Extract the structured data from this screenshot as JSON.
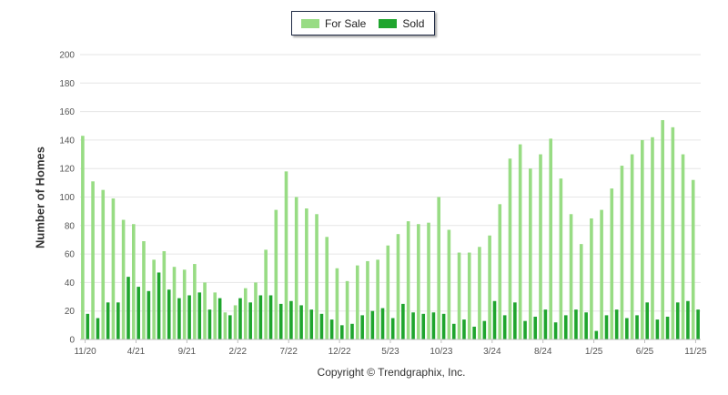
{
  "colors": {
    "for_sale": "#98dc84",
    "sold": "#1fa52e",
    "grid": "#e6e6e6",
    "axis_text": "#555555"
  },
  "legend": {
    "items": [
      {
        "label": "For Sale",
        "color": "#98dc84"
      },
      {
        "label": "Sold",
        "color": "#1fa52e"
      }
    ]
  },
  "copyright": "Copyright © Trendgraphix, Inc.",
  "chart_data": {
    "type": "bar",
    "ylabel": "Number of Homes",
    "ylim": [
      0,
      200
    ],
    "yticks": [
      0,
      20,
      40,
      60,
      80,
      100,
      120,
      140,
      160,
      180,
      200
    ],
    "grid": true,
    "legend_position": "top-center",
    "x_tick_labels": [
      {
        "index": 0,
        "label": "11/20"
      },
      {
        "index": 5,
        "label": "4/21"
      },
      {
        "index": 10,
        "label": "9/21"
      },
      {
        "index": 15,
        "label": "2/22"
      },
      {
        "index": 20,
        "label": "7/22"
      },
      {
        "index": 25,
        "label": "12/22"
      },
      {
        "index": 30,
        "label": "5/23"
      },
      {
        "index": 35,
        "label": "10/23"
      },
      {
        "index": 40,
        "label": "3/24"
      },
      {
        "index": 45,
        "label": "8/24"
      },
      {
        "index": 50,
        "label": "1/25"
      },
      {
        "index": 55,
        "label": "6/25"
      },
      {
        "index": 60,
        "label": "11/25"
      }
    ],
    "categories": [
      "11/20",
      "12/20",
      "1/21",
      "2/21",
      "3/21",
      "4/21",
      "5/21",
      "6/21",
      "7/21",
      "8/21",
      "9/21",
      "10/21",
      "11/21",
      "12/21",
      "1/22",
      "2/22",
      "3/22",
      "4/22",
      "5/22",
      "6/22",
      "7/22",
      "8/22",
      "9/22",
      "10/22",
      "11/22",
      "12/22",
      "1/23",
      "2/23",
      "3/23",
      "4/23",
      "5/23",
      "6/23",
      "7/23",
      "8/23",
      "9/23",
      "10/23",
      "11/23",
      "12/23",
      "1/24",
      "2/24",
      "3/24",
      "4/24",
      "5/24",
      "6/24",
      "7/24",
      "8/24",
      "9/24",
      "10/24",
      "11/24",
      "12/24",
      "1/25",
      "2/25",
      "3/25",
      "4/25",
      "5/25",
      "6/25",
      "7/25",
      "8/25",
      "9/25",
      "10/25",
      "11/25"
    ],
    "series": [
      {
        "name": "For Sale",
        "values": [
          143,
          111,
          105,
          99,
          84,
          81,
          69,
          56,
          62,
          51,
          49,
          53,
          40,
          33,
          19,
          24,
          36,
          40,
          63,
          91,
          118,
          100,
          92,
          88,
          72,
          50,
          41,
          52,
          55,
          56,
          66,
          74,
          83,
          81,
          82,
          100,
          77,
          61,
          61,
          65,
          73,
          95,
          127,
          137,
          120,
          130,
          141,
          113,
          88,
          67,
          85,
          91,
          106,
          122,
          130,
          140,
          142,
          154,
          149,
          130,
          112
        ]
      },
      {
        "name": "Sold",
        "values": [
          18,
          15,
          26,
          26,
          44,
          37,
          34,
          47,
          35,
          29,
          31,
          33,
          21,
          29,
          17,
          29,
          26,
          31,
          31,
          25,
          27,
          24,
          21,
          18,
          14,
          10,
          11,
          17,
          20,
          22,
          15,
          25,
          19,
          18,
          19,
          18,
          11,
          14,
          9,
          13,
          27,
          17,
          26,
          13,
          16,
          21,
          12,
          17,
          21,
          19,
          6,
          17,
          21,
          15,
          17,
          26,
          14,
          16,
          26,
          27,
          21
        ]
      }
    ]
  }
}
